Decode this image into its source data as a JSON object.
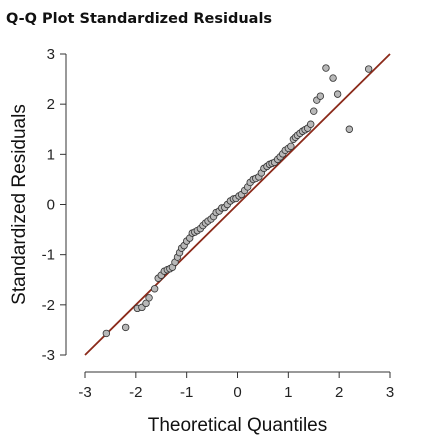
{
  "chart_data": {
    "type": "scatter",
    "title": "Q-Q Plot Standardized Residuals",
    "xlabel": "Theoretical Quantiles",
    "ylabel": "Standardized Residuals",
    "xlim": [
      -3,
      3
    ],
    "ylim": [
      -3,
      3
    ],
    "xticks": [
      -3,
      -2,
      -1,
      0,
      1,
      2,
      3
    ],
    "yticks": [
      -3,
      -2,
      -1,
      0,
      1,
      2,
      3
    ],
    "xtick_labels": [
      "-3",
      "-2",
      "-1",
      "0",
      "1",
      "2",
      "3"
    ],
    "ytick_labels": [
      "-3",
      "-2",
      "-1",
      "0",
      "1",
      "2",
      "3"
    ],
    "grid": false,
    "reference_line": {
      "x": [
        -3,
        3
      ],
      "y": [
        -3,
        3
      ],
      "color": "#8b2a1a"
    },
    "point_fill": "#b8b8b8",
    "point_stroke": "#333333",
    "points": {
      "x": [
        -2.58,
        -2.2,
        -1.97,
        -1.88,
        -1.8,
        -1.74,
        -1.63,
        -1.56,
        -1.5,
        -1.44,
        -1.38,
        -1.33,
        -1.28,
        -1.23,
        -1.18,
        -1.14,
        -1.1,
        -1.05,
        -1.0,
        -0.94,
        -0.89,
        -0.84,
        -0.79,
        -0.73,
        -0.68,
        -0.63,
        -0.58,
        -0.52,
        -0.47,
        -0.42,
        -0.36,
        -0.31,
        -0.25,
        -0.2,
        -0.14,
        -0.08,
        -0.03,
        0.03,
        0.08,
        0.14,
        0.2,
        0.25,
        0.31,
        0.36,
        0.42,
        0.47,
        0.52,
        0.58,
        0.63,
        0.68,
        0.73,
        0.79,
        0.84,
        0.89,
        0.94,
        1.0,
        1.05,
        1.1,
        1.14,
        1.18,
        1.23,
        1.28,
        1.33,
        1.38,
        1.44,
        1.5,
        1.56,
        1.63,
        1.74,
        1.88,
        1.97,
        2.2,
        2.58
      ],
      "y": [
        -2.57,
        -2.45,
        -2.07,
        -2.05,
        -1.97,
        -1.86,
        -1.68,
        -1.47,
        -1.41,
        -1.33,
        -1.3,
        -1.28,
        -1.25,
        -1.15,
        -1.05,
        -0.96,
        -0.87,
        -0.82,
        -0.73,
        -0.67,
        -0.57,
        -0.55,
        -0.52,
        -0.48,
        -0.42,
        -0.37,
        -0.33,
        -0.29,
        -0.24,
        -0.16,
        -0.13,
        -0.07,
        -0.06,
        0.0,
        0.07,
        0.11,
        0.12,
        0.17,
        0.2,
        0.28,
        0.35,
        0.44,
        0.5,
        0.52,
        0.55,
        0.63,
        0.72,
        0.76,
        0.8,
        0.82,
        0.84,
        0.9,
        0.95,
        1.01,
        1.08,
        1.12,
        1.16,
        1.3,
        1.34,
        1.38,
        1.42,
        1.46,
        1.49,
        1.52,
        1.6,
        1.86,
        2.08,
        2.16,
        2.72,
        2.52,
        2.2,
        1.5,
        2.7
      ]
    }
  }
}
